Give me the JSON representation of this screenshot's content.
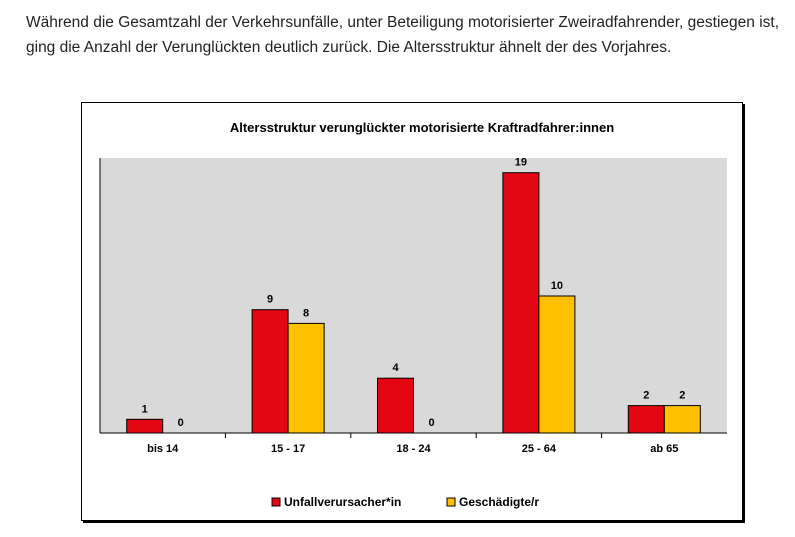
{
  "intro_text": "Während die Gesamtzahl der Verkehrsunfälle, unter Beteiligung motorisierter Zweiradfahrender, gestiegen ist, ging die Anzahl der Verunglückten deutlich zurück. Die Altersstruktur ähnelt der des Vorjahres.",
  "chart_data": {
    "type": "bar",
    "title": "Altersstruktur verunglückter motorisierte Kraftradfahrer:innen",
    "xlabel": "",
    "ylabel": "",
    "categories": [
      "bis 14",
      "15 - 17",
      "18 - 24",
      "25 - 64",
      "ab 65"
    ],
    "series": [
      {
        "name": "Unfallverursacher*in",
        "values": [
          1,
          9,
          4,
          19,
          2
        ],
        "color": "#e30613"
      },
      {
        "name": "Geschädigte/r",
        "values": [
          0,
          8,
          0,
          10,
          2
        ],
        "color": "#ffc000"
      }
    ],
    "ylim": [
      0,
      20
    ],
    "grid": false,
    "legend": "bottom",
    "plot_background": "#d9d9d9"
  }
}
